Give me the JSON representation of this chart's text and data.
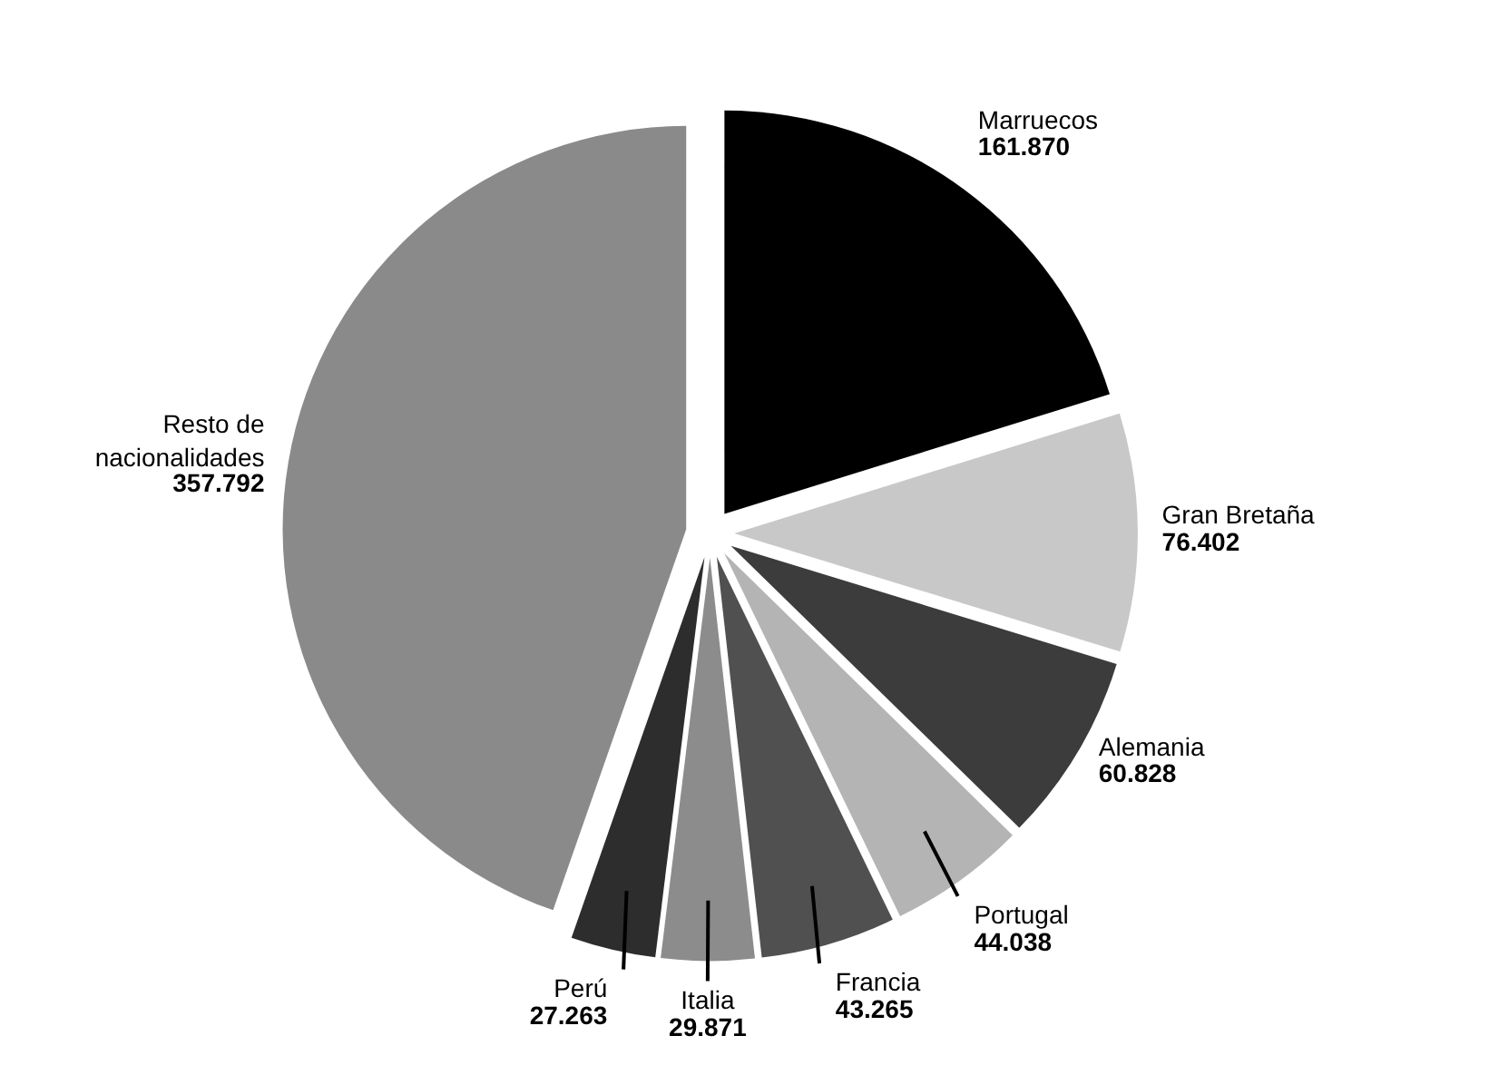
{
  "chart_data": {
    "type": "pie",
    "categories": [
      "Marruecos",
      "Gran Bretaña",
      "Alemania",
      "Portugal",
      "Francia",
      "Italia",
      "Perú",
      "Resto de nacionalidades"
    ],
    "values": [
      161870,
      76402,
      60828,
      44038,
      43265,
      29871,
      27263,
      357792
    ],
    "value_labels": [
      "161.870",
      "76.402",
      "60.828",
      "44.038",
      "43.265",
      "29.871",
      "27.263",
      "357.792"
    ],
    "colors": [
      "#000000",
      "#c8c8c8",
      "#3c3c3c",
      "#b4b4b4",
      "#505050",
      "#8c8c8c",
      "#2d2d2d",
      "#8a8a8a"
    ]
  }
}
